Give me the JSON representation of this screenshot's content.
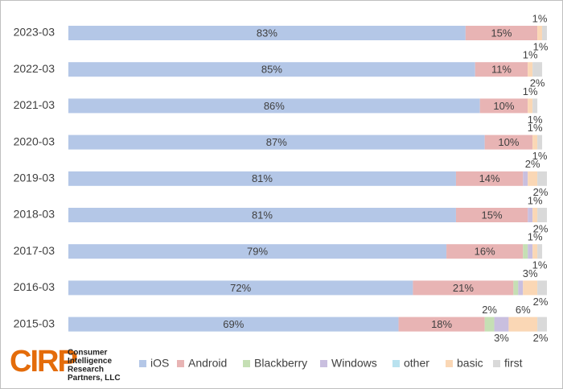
{
  "chart_data": {
    "type": "stacked-bar-horizontal",
    "categories": [
      "2023-03",
      "2022-03",
      "2021-03",
      "2020-03",
      "2019-03",
      "2018-03",
      "2017-03",
      "2016-03",
      "2015-03"
    ],
    "xlim": [
      0,
      100
    ],
    "series": [
      {
        "name": "iOS",
        "color": "#b4c7e7",
        "values": [
          83,
          85,
          86,
          87,
          81,
          81,
          79,
          72,
          69
        ],
        "value_labels": [
          "83%",
          "85%",
          "86%",
          "87%",
          "81%",
          "81%",
          "79%",
          "72%",
          "69%"
        ]
      },
      {
        "name": "Android",
        "color": "#e8b4b4",
        "values": [
          15,
          11,
          10,
          10,
          14,
          15,
          16,
          21,
          18
        ],
        "value_labels": [
          "15%",
          "11%",
          "10%",
          "10%",
          "14%",
          "15%",
          "16%",
          "21%",
          "18%"
        ]
      },
      {
        "name": "Blackberry",
        "color": "#c5dfb4",
        "values": [
          0,
          0,
          0,
          0,
          0,
          0,
          1,
          1,
          2
        ],
        "value_labels": [
          null,
          null,
          null,
          null,
          null,
          null,
          null,
          null,
          "2%"
        ]
      },
      {
        "name": "Windows",
        "color": "#c9bfdf",
        "values": [
          0,
          0,
          0,
          0,
          1,
          1,
          1,
          1,
          3
        ],
        "value_labels": [
          null,
          null,
          null,
          null,
          null,
          null,
          null,
          null,
          "3%"
        ]
      },
      {
        "name": "other",
        "color": "#b9e2ef",
        "values": [
          0,
          0,
          0,
          0,
          0,
          0,
          0,
          0,
          0
        ],
        "value_labels": [
          null,
          null,
          null,
          null,
          null,
          null,
          null,
          null,
          null
        ]
      },
      {
        "name": "basic",
        "color": "#fad7b5",
        "values": [
          1,
          1,
          1,
          1,
          2,
          1,
          1,
          3,
          6
        ],
        "value_labels": [
          "1%",
          "1%",
          "1%",
          "1%",
          "2%",
          "1%",
          "1%",
          "3%",
          "6%"
        ]
      },
      {
        "name": "first",
        "color": "#d9d9d9",
        "values": [
          1,
          2,
          1,
          1,
          2,
          2,
          1,
          2,
          2
        ],
        "value_labels": [
          "1%",
          "2%",
          "1%",
          "1%",
          "2%",
          "2%",
          "1%",
          "2%",
          "2%"
        ]
      }
    ]
  },
  "logo": {
    "mark": "CIRP",
    "lines": [
      "Consumer",
      "Intelligence",
      "Research",
      "Partners, LLC"
    ]
  }
}
